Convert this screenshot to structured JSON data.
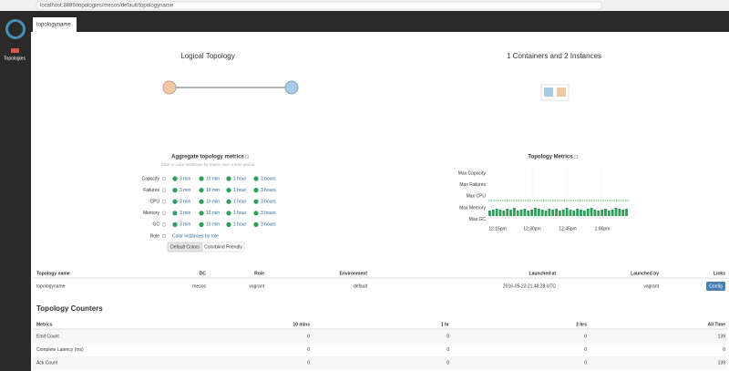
{
  "browser": {
    "url": "localhost:8889/topologies/mesos/default/topologyname"
  },
  "tab": "topologyname",
  "sidebar": {
    "label": "Topologies"
  },
  "logical_topology": {
    "title": "Logical Topology"
  },
  "physical_plan": {
    "title": "1 Containers and 2 Instances"
  },
  "aggregate_metrics": {
    "title": "Aggregate topology metrics",
    "hint": "Click to color instances by metric over a time period",
    "metrics": [
      "Capacity",
      "Failures",
      "CPU",
      "Memory",
      "GC"
    ],
    "periods": [
      "3 min",
      "10 min",
      "1 hour",
      "3 hours"
    ],
    "role_label": "Role",
    "role_link": "Color instances by role",
    "buttons": [
      "Default Colors",
      "Colorblind Friendly"
    ]
  },
  "topology_metrics": {
    "title": "Topology Metrics",
    "labels": [
      "Max Capacity",
      "Max Failures",
      "Max CPU",
      "Max Memory",
      "Max GC"
    ],
    "times": [
      "12:15pm",
      "12:30pm",
      "12:45pm",
      "1:00pm"
    ],
    "memory_bars": [
      6,
      7,
      8,
      7,
      6,
      8,
      7,
      9,
      6,
      7,
      8,
      6,
      7,
      9,
      8,
      7,
      6,
      8,
      7,
      8,
      6,
      7,
      9,
      7,
      6,
      8,
      7,
      6,
      8,
      9,
      7,
      6,
      7,
      8,
      6,
      7,
      9,
      8,
      7,
      8
    ]
  },
  "info_table": {
    "headers": [
      "Topology name",
      "DC",
      "Role",
      "Environment",
      "Launched at",
      "Launched by",
      "Links"
    ],
    "rows": [
      [
        "topologyname",
        "mesos",
        "vagrant",
        "default",
        "2016-05-23 21:48:28 UTC",
        "vagrant",
        "Config"
      ]
    ]
  },
  "counters": {
    "title": "Topology Counters",
    "headers": [
      "Metrics",
      "10 mins",
      "1 hr",
      "3 hrs",
      "All Time"
    ],
    "rows": [
      [
        "Emit Count",
        0,
        0,
        0,
        139
      ],
      [
        "Complete Latency (ms)",
        0,
        0,
        0,
        0
      ],
      [
        "Ack Count",
        0,
        0,
        0,
        139
      ]
    ]
  }
}
